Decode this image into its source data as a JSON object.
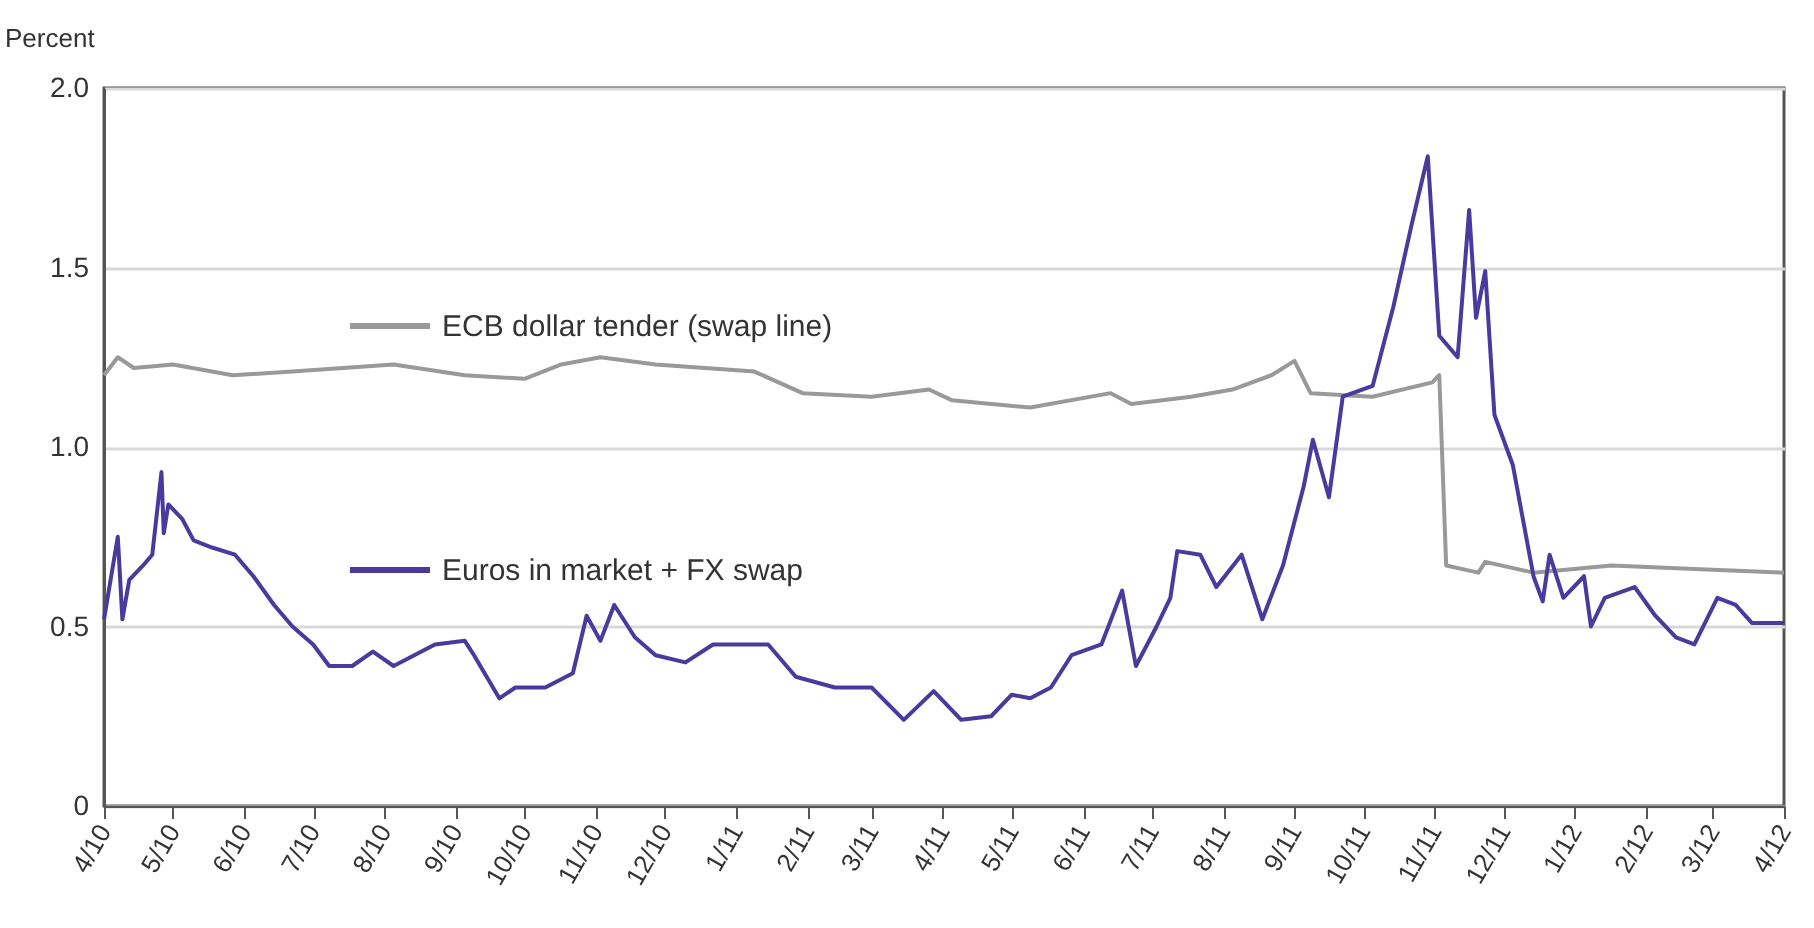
{
  "chart_data": {
    "type": "line",
    "ylabel": "Percent",
    "xlim": [
      "2010-04-01",
      "2012-04-01"
    ],
    "xticks": [
      {
        "value": "2010-04",
        "label": "4/10"
      },
      {
        "value": "2010-05",
        "label": "5/10"
      },
      {
        "value": "2010-06",
        "label": "6/10"
      },
      {
        "value": "2010-07",
        "label": "7/10"
      },
      {
        "value": "2010-08",
        "label": "8/10"
      },
      {
        "value": "2010-09",
        "label": "9/10"
      },
      {
        "value": "2010-10",
        "label": "10/10"
      },
      {
        "value": "2010-11",
        "label": "11/10"
      },
      {
        "value": "2010-12",
        "label": "12/10"
      },
      {
        "value": "2011-01",
        "label": "1/11"
      },
      {
        "value": "2011-02",
        "label": "2/11"
      },
      {
        "value": "2011-03",
        "label": "3/11"
      },
      {
        "value": "2011-04",
        "label": "4/11"
      },
      {
        "value": "2011-05",
        "label": "5/11"
      },
      {
        "value": "2011-06",
        "label": "6/11"
      },
      {
        "value": "2011-07",
        "label": "7/11"
      },
      {
        "value": "2011-08",
        "label": "8/11"
      },
      {
        "value": "2011-09",
        "label": "9/11"
      },
      {
        "value": "2011-10",
        "label": "10/11"
      },
      {
        "value": "2011-11",
        "label": "11/11"
      },
      {
        "value": "2011-12",
        "label": "12/11"
      },
      {
        "value": "2012-01",
        "label": "1/12"
      },
      {
        "value": "2012-02",
        "label": "2/12"
      },
      {
        "value": "2012-03",
        "label": "3/12"
      },
      {
        "value": "2012-04",
        "label": "4/12"
      }
    ],
    "ylim": [
      0,
      2.0
    ],
    "yticks": [
      {
        "value": 0,
        "label": "0"
      },
      {
        "value": 0.5,
        "label": "0.5"
      },
      {
        "value": 1.0,
        "label": "1.0"
      },
      {
        "value": 1.5,
        "label": "1.5"
      },
      {
        "value": 2.0,
        "label": "2.0"
      }
    ],
    "grid": "y",
    "legend": "left",
    "line_style": "solid",
    "marker": "none",
    "series": [
      {
        "name": "ECB dollar tender (swap line)",
        "color": "#999999",
        "x": [
          "2010-04-01",
          "2010-04-07",
          "2010-04-14",
          "2010-05-01",
          "2010-05-27",
          "2010-06-22",
          "2010-08-05",
          "2010-09-05",
          "2010-10-01",
          "2010-10-17",
          "2010-11-03",
          "2010-11-27",
          "2011-01-09",
          "2011-01-30",
          "2011-03-01",
          "2011-03-26",
          "2011-04-05",
          "2011-05-09",
          "2011-06-13",
          "2011-06-22",
          "2011-07-18",
          "2011-08-05",
          "2011-08-22",
          "2011-09-01",
          "2011-09-08",
          "2011-10-05",
          "2011-10-31",
          "2011-11-03",
          "2011-11-06",
          "2011-11-20",
          "2011-11-23",
          "2011-12-14",
          "2012-01-17",
          "2012-02-22",
          "2012-04-01"
        ],
        "values": [
          1.2,
          1.25,
          1.22,
          1.23,
          1.2,
          1.21,
          1.23,
          1.2,
          1.19,
          1.23,
          1.25,
          1.23,
          1.21,
          1.15,
          1.14,
          1.16,
          1.13,
          1.11,
          1.15,
          1.12,
          1.14,
          1.16,
          1.2,
          1.24,
          1.15,
          1.14,
          1.18,
          1.2,
          0.67,
          0.65,
          0.68,
          0.65,
          0.67,
          0.66,
          0.65
        ]
      },
      {
        "name": "Euros in market + FX swap",
        "color": "#4b3a9e",
        "x": [
          "2010-04-01",
          "2010-04-07",
          "2010-04-09",
          "2010-04-12",
          "2010-04-18",
          "2010-04-22",
          "2010-04-26",
          "2010-04-27",
          "2010-04-29",
          "2010-05-05",
          "2010-05-10",
          "2010-05-18",
          "2010-05-28",
          "2010-06-05",
          "2010-06-14",
          "2010-06-22",
          "2010-07-01",
          "2010-07-08",
          "2010-07-18",
          "2010-07-27",
          "2010-08-05",
          "2010-08-14",
          "2010-08-23",
          "2010-09-05",
          "2010-09-09",
          "2010-09-20",
          "2010-09-27",
          "2010-10-10",
          "2010-10-22",
          "2010-10-28",
          "2010-11-03",
          "2010-11-09",
          "2010-11-18",
          "2010-11-27",
          "2010-12-10",
          "2010-12-22",
          "2011-01-15",
          "2011-01-27",
          "2011-02-13",
          "2011-03-01",
          "2011-03-15",
          "2011-03-28",
          "2011-04-09",
          "2011-04-22",
          "2011-05-01",
          "2011-05-09",
          "2011-05-18",
          "2011-05-27",
          "2011-06-09",
          "2011-06-18",
          "2011-06-24",
          "2011-07-03",
          "2011-07-09",
          "2011-07-12",
          "2011-07-22",
          "2011-07-29",
          "2011-08-09",
          "2011-08-18",
          "2011-08-27",
          "2011-09-05",
          "2011-09-09",
          "2011-09-16",
          "2011-09-22",
          "2011-10-05",
          "2011-10-14",
          "2011-10-22",
          "2011-10-29",
          "2011-11-03",
          "2011-11-11",
          "2011-11-16",
          "2011-11-19",
          "2011-11-23",
          "2011-11-27",
          "2011-12-05",
          "2011-12-14",
          "2011-12-18",
          "2011-12-21",
          "2011-12-27",
          "2012-01-05",
          "2012-01-08",
          "2012-01-14",
          "2012-01-27",
          "2012-02-05",
          "2012-02-14",
          "2012-02-22",
          "2012-03-03",
          "2012-03-11",
          "2012-03-18",
          "2012-04-01"
        ],
        "values": [
          0.52,
          0.75,
          0.52,
          0.63,
          0.67,
          0.7,
          0.93,
          0.76,
          0.84,
          0.8,
          0.74,
          0.72,
          0.7,
          0.64,
          0.56,
          0.5,
          0.45,
          0.39,
          0.39,
          0.43,
          0.39,
          0.42,
          0.45,
          0.46,
          0.42,
          0.3,
          0.33,
          0.33,
          0.37,
          0.53,
          0.46,
          0.56,
          0.47,
          0.42,
          0.4,
          0.45,
          0.45,
          0.36,
          0.33,
          0.33,
          0.24,
          0.32,
          0.24,
          0.25,
          0.31,
          0.3,
          0.33,
          0.42,
          0.45,
          0.6,
          0.39,
          0.5,
          0.58,
          0.71,
          0.7,
          0.61,
          0.7,
          0.52,
          0.67,
          0.89,
          1.02,
          0.86,
          1.14,
          1.17,
          1.39,
          1.62,
          1.81,
          1.31,
          1.25,
          1.66,
          1.36,
          1.49,
          1.09,
          0.95,
          0.64,
          0.57,
          0.7,
          0.58,
          0.64,
          0.5,
          0.58,
          0.61,
          0.53,
          0.47,
          0.45,
          0.58,
          0.56,
          0.51,
          0.51
        ]
      }
    ]
  }
}
